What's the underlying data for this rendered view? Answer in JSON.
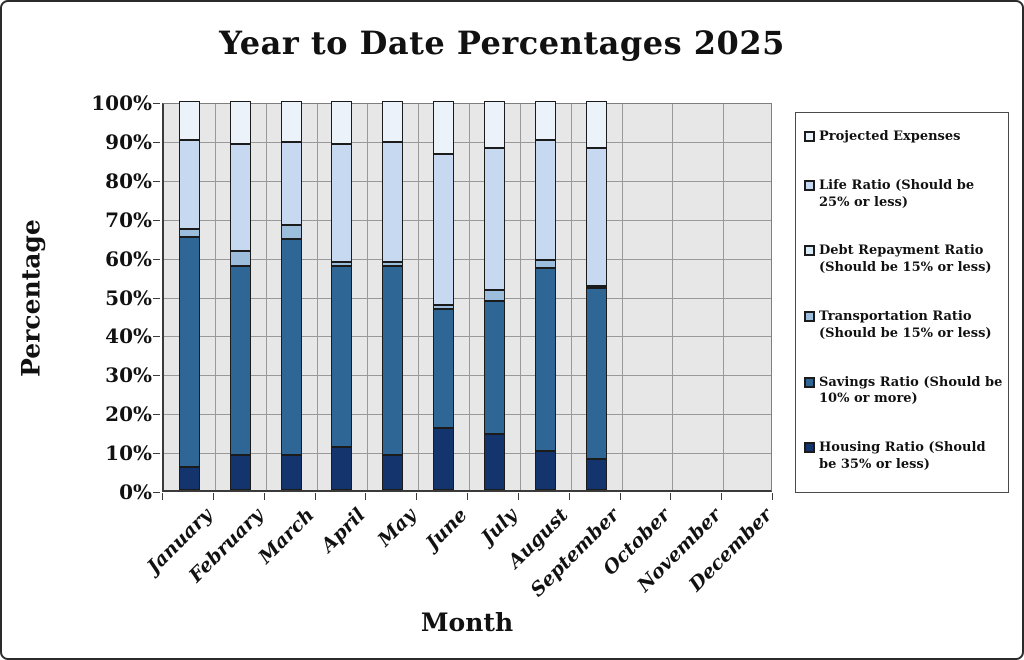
{
  "title": "Year to Date Percentages 2025",
  "y_axis": {
    "title": "Percentage",
    "ticks": [
      "100%",
      "90%",
      "80%",
      "70%",
      "60%",
      "50%",
      "40%",
      "30%",
      "20%",
      "10%",
      "0%"
    ]
  },
  "x_axis": {
    "title": "Month"
  },
  "colors": {
    "plot_background": "#e7e7e7",
    "gridline": "#999999",
    "segment_border": "#1b1b1b"
  },
  "chart_data": {
    "type": "bar",
    "stacked": true,
    "grid": true,
    "legend_position": "right",
    "ylim": [
      0,
      100
    ],
    "categories": [
      "January",
      "February",
      "March",
      "April",
      "May",
      "June",
      "July",
      "August",
      "September",
      "October",
      "November",
      "December"
    ],
    "series": [
      {
        "name": "Housing Ratio (Should be 35% or less)",
        "color": "#14346e",
        "values": [
          6,
          9,
          9,
          11,
          9,
          16,
          14.5,
          10,
          8,
          0,
          0,
          0
        ]
      },
      {
        "name": "Savings Ratio (Should be 10% or more)",
        "color": "#2e6795",
        "values": [
          59,
          48.5,
          55.5,
          46.5,
          48.5,
          30.5,
          34,
          47,
          44,
          0,
          0,
          0
        ]
      },
      {
        "name": "Transportation Ratio (Should be 15% or less)",
        "color": "#9dbddd",
        "values": [
          2,
          4,
          3.5,
          1,
          1,
          1,
          3,
          2,
          0.5,
          0,
          0,
          0
        ]
      },
      {
        "name": "Debt Repayment Ratio (Should be 15% or less)",
        "color": "#d9eaf7",
        "values": [
          0,
          0,
          0,
          0,
          0,
          0,
          0,
          0,
          0,
          0,
          0,
          0
        ]
      },
      {
        "name": "Life Ratio (Should be 25% or less)",
        "color": "#c6d9f0",
        "values": [
          23,
          27.5,
          21.5,
          30.5,
          31,
          39,
          36.5,
          31,
          35.5,
          0,
          0,
          0
        ]
      },
      {
        "name": "Projected Expenses",
        "color": "#ecf2fa",
        "values": [
          10,
          11,
          10.5,
          11,
          10.5,
          13.5,
          12,
          10,
          12,
          0,
          0,
          0
        ]
      }
    ]
  }
}
